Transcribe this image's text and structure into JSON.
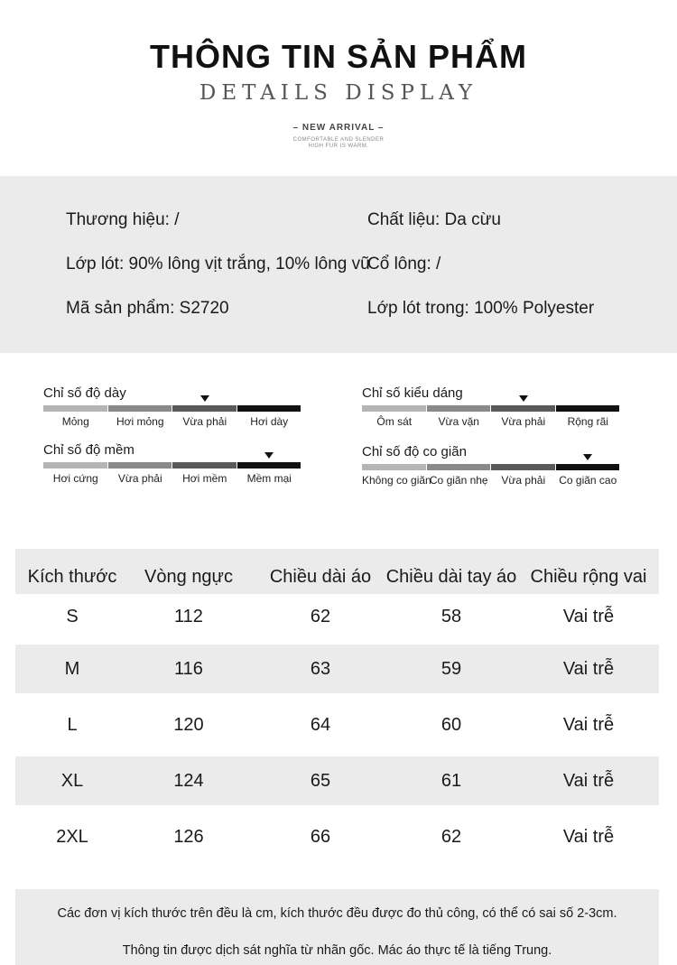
{
  "header": {
    "title": "THÔNG TIN SẢN PHẨM",
    "subtitle": "DETAILS DISPLAY",
    "arrival": "– NEW ARRIVAL –",
    "tagline_1": "COMFORTABLE AND SLENDER",
    "tagline_2": "HIGH FUR IS WARM."
  },
  "info": {
    "brand": "Thương hiệu: /",
    "material": "Chất liệu: Da cừu",
    "lining": "Lớp lót: 90% lông vịt trắng, 10% lông vũ",
    "collar": "Cổ lông: /",
    "product_code": "Mã sản phẩm: S2720",
    "inner_lining": "Lớp lót trong: 100% Polyester"
  },
  "scales": [
    {
      "title": "Chỉ số độ dày",
      "options": [
        "Mỏng",
        "Hơi mỏng",
        "Vừa phải",
        "Hơi dày"
      ],
      "selected_index": 2
    },
    {
      "title": "Chỉ số kiểu dáng",
      "options": [
        "Ôm sát",
        "Vừa vặn",
        "Vừa phải",
        "Rộng rãi"
      ],
      "selected_index": 2
    },
    {
      "title": "Chỉ số độ mềm",
      "options": [
        "Hơi cứng",
        "Vừa phải",
        "Hơi mềm",
        "Mềm mại"
      ],
      "selected_index": 3
    },
    {
      "title": "Chỉ số độ co giãn",
      "options": [
        "Không co giãn",
        "Co giãn nhẹ",
        "Vừa phải",
        "Co giãn cao"
      ],
      "selected_index": 3
    }
  ],
  "scale_colors": [
    "#b5b5b5",
    "#8a8a8a",
    "#5a5a5a",
    "#111111"
  ],
  "size_table": {
    "headers": [
      "Kích thước",
      "Vòng ngực",
      "Chiều dài áo",
      "Chiều dài tay áo",
      "Chiều rộng vai"
    ],
    "rows": [
      [
        "S",
        "112",
        "62",
        "58",
        "Vai trễ"
      ],
      [
        "M",
        "116",
        "63",
        "59",
        "Vai trễ"
      ],
      [
        "L",
        "120",
        "64",
        "60",
        "Vai trễ"
      ],
      [
        "XL",
        "124",
        "65",
        "61",
        "Vai trễ"
      ],
      [
        "2XL",
        "126",
        "66",
        "62",
        "Vai trễ"
      ]
    ]
  },
  "footer": {
    "note_1": "Các đơn vị kích thước trên đều là cm, kích thước đều được đo thủ công, có thể có sai số 2-3cm.",
    "note_2": "Thông tin được dịch sát nghĩa từ nhãn gốc. Mác áo thực tế là tiếng Trung."
  }
}
